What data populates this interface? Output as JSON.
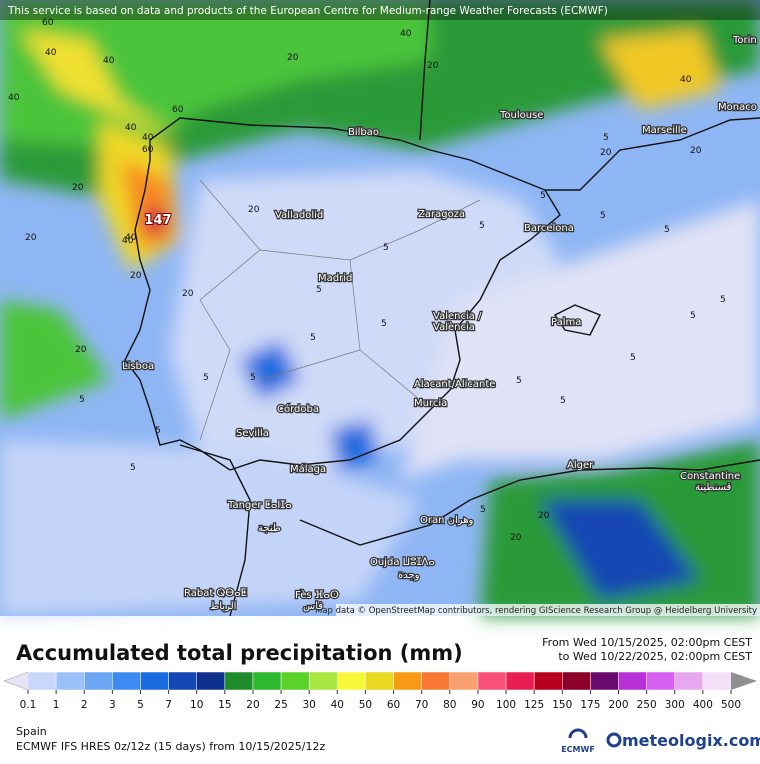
{
  "header": {
    "notice": "This service is based on data and products of the European Centre for Medium-range Weather Forecasts (ECMWF)"
  },
  "map": {
    "attribution": "Map data © OpenStreetMap contributors, rendering GIScience Research Group @ Heidelberg University",
    "max_label": "147",
    "cities": [
      "Bilbao",
      "Toulouse",
      "Marseille",
      "Monaco",
      "Torin",
      "Valladolid",
      "Zaragoza",
      "Barcelona",
      "Madrid",
      "Valencia /",
      "València",
      "Palma",
      "Lisboa",
      "Alacant/Alicante",
      "Murcia",
      "Córdoba",
      "Sevilla",
      "Málaga",
      "Alger",
      "Constantine",
      "قسنطينة",
      "Tanger ⵟⴰⵏⵊⴰ",
      "طنجة",
      "Oran وهران",
      "Oujda ⵡⵓⵊⴷⴰ",
      "وجدة",
      "Rabat ⵕⴱⴰⵟ",
      "الرباط",
      "Fès ⴼⴰⵙ",
      "فاس"
    ],
    "contour_labels": [
      "40",
      "40",
      "40",
      "60",
      "40",
      "20",
      "20",
      "40",
      "60",
      "40",
      "20",
      "20",
      "20",
      "20",
      "5",
      "5",
      "5",
      "5",
      "5",
      "5",
      "5",
      "5",
      "5",
      "5",
      "5",
      "5",
      "5",
      "5",
      "5",
      "5",
      "5",
      "5",
      "20",
      "20",
      "60",
      "40",
      "40",
      "20",
      "5",
      "5",
      "20",
      "20",
      "40",
      "20"
    ]
  },
  "legend": {
    "title": "Accumulated total precipitation (mm)",
    "from": "From Wed 10/15/2025, 02:00pm CEST",
    "to": "to Wed 10/22/2025, 02:00pm CEST",
    "ticks": [
      0.1,
      1,
      2,
      3,
      5,
      7,
      10,
      15,
      20,
      25,
      30,
      40,
      50,
      60,
      70,
      80,
      90,
      100,
      125,
      150,
      175,
      200,
      250,
      300,
      400,
      500
    ],
    "colors": [
      "#e4e4f6",
      "#c8d8fa",
      "#9cc0fa",
      "#6ea6f6",
      "#3d8af2",
      "#1a6be0",
      "#1446b4",
      "#0f2f8c",
      "#1e8c2a",
      "#2eb82e",
      "#5ad22a",
      "#a8e640",
      "#f8f838",
      "#e8d820",
      "#f89a14",
      "#f87832",
      "#f8a070",
      "#f85078",
      "#e81e50",
      "#b8001e",
      "#8c0028",
      "#6a0a6e",
      "#b830d8",
      "#d860f0",
      "#e8a8f0",
      "#f4e0f8",
      "#d0d0d0",
      "#909090"
    ]
  },
  "footer": {
    "region": "Spain",
    "model": "ECMWF IFS HRES 0z/12z (15 days) from  10/15/2025/12z",
    "ecmwf": "ECMWF",
    "brand": "meteologix.com"
  }
}
